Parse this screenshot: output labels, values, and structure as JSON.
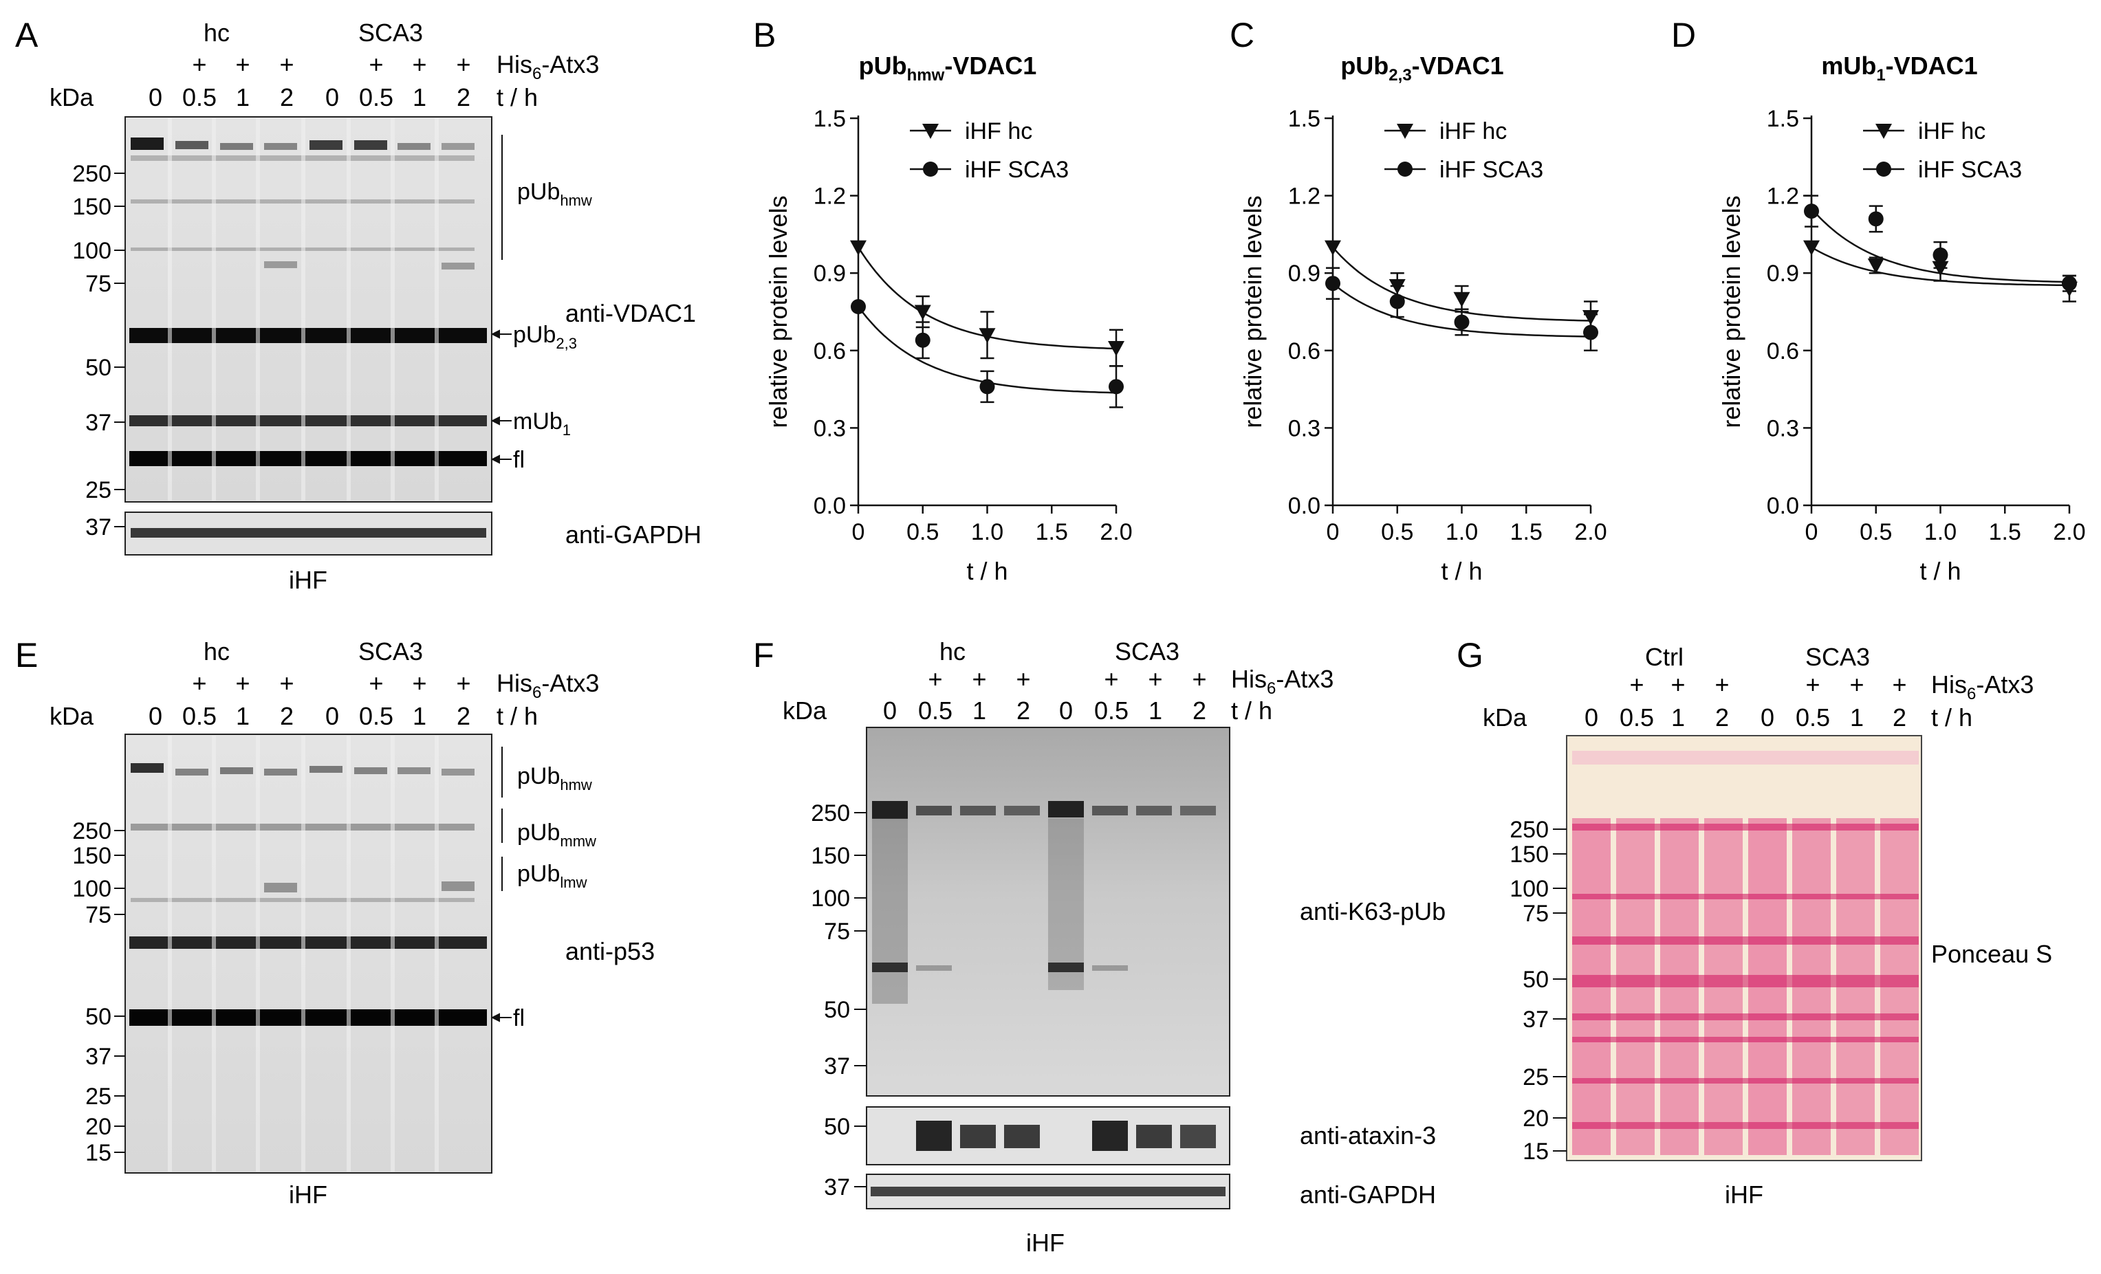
{
  "panel_letters": [
    "A",
    "B",
    "C",
    "D",
    "E",
    "F",
    "G"
  ],
  "common": {
    "kda": "kDa",
    "his": "His",
    "his_sub": "6",
    "his_rest": "-Atx3",
    "plus": "+",
    "th": "t / h",
    "ihf": "iHF",
    "time_labels": [
      "0",
      "0.5",
      "1",
      "2",
      "0",
      "0.5",
      "1",
      "2"
    ]
  },
  "panel_a": {
    "group_left": "hc",
    "group_right": "SCA3",
    "markers_main": [
      "250",
      "150",
      "100",
      "75",
      "50",
      "37",
      "25"
    ],
    "marker_gapdh": "37",
    "bracket_label": "pUb",
    "bracket_sub": "hmw",
    "antibody": "anti-VDAC1",
    "arrow_pub23": "pUb",
    "arrow_pub23_sub": "2,3",
    "arrow_mub1": "mUb",
    "arrow_mub1_sub": "1",
    "arrow_fl": "fl",
    "gapdh": "anti-GAPDH"
  },
  "panel_e": {
    "group_left": "hc",
    "group_right": "SCA3",
    "markers": [
      "250",
      "150",
      "100",
      "75",
      "50",
      "37",
      "25",
      "20",
      "15"
    ],
    "brackets": [
      {
        "label": "pUb",
        "sub": "hmw"
      },
      {
        "label": "pUb",
        "sub": "mmw"
      },
      {
        "label": "pUb",
        "sub": "lmw"
      }
    ],
    "antibody": "anti-p53",
    "arrow_fl": "fl"
  },
  "panel_f": {
    "group_left": "hc",
    "group_right": "SCA3",
    "markers": [
      "250",
      "150",
      "100",
      "75",
      "50",
      "37"
    ],
    "marker_ataxin": "50",
    "marker_gapdh": "37",
    "antibody": "anti-K63-pUb",
    "ataxin": "anti-ataxin-3",
    "gapdh": "anti-GAPDH"
  },
  "panel_g": {
    "group_left": "Ctrl",
    "group_right": "SCA3",
    "markers": [
      "250",
      "150",
      "100",
      "75",
      "50",
      "37",
      "25",
      "20",
      "15"
    ],
    "stain": "Ponceau S"
  },
  "chart_data": [
    {
      "type": "scatter",
      "title": "pUb",
      "title_sub": "hmw",
      "title_rest": "-VDAC1",
      "xlabel": "t / h",
      "ylabel": "relative protein levels",
      "xlim": [
        0,
        2.0
      ],
      "ylim": [
        0,
        1.5
      ],
      "xticks": [
        "0",
        "0.5",
        "1.0",
        "1.5",
        "2.0"
      ],
      "yticks": [
        "0.0",
        "0.3",
        "0.6",
        "0.9",
        "1.2",
        "1.5"
      ],
      "x": [
        0,
        0.5,
        1.0,
        2.0
      ],
      "series": [
        {
          "name": "iHF hc",
          "marker": "triangle-down",
          "values": [
            1.0,
            0.75,
            0.66,
            0.61
          ],
          "errors": [
            0.0,
            0.06,
            0.09,
            0.07
          ],
          "fit": [
            1.0,
            0.6
          ]
        },
        {
          "name": "iHF SCA3",
          "marker": "circle",
          "values": [
            0.77,
            0.64,
            0.46,
            0.46
          ],
          "errors": [
            0.0,
            0.07,
            0.06,
            0.08
          ],
          "fit": [
            0.77,
            0.43
          ]
        }
      ]
    },
    {
      "type": "scatter",
      "title": "pUb",
      "title_sub": "2,3",
      "title_rest": "-VDAC1",
      "xlabel": "t / h",
      "ylabel": "relative protein levels",
      "xlim": [
        0,
        2.0
      ],
      "ylim": [
        0,
        1.5
      ],
      "xticks": [
        "0",
        "0.5",
        "1.0",
        "1.5",
        "2.0"
      ],
      "yticks": [
        "0.0",
        "0.3",
        "0.6",
        "0.9",
        "1.2",
        "1.5"
      ],
      "x": [
        0,
        0.5,
        1.0,
        2.0
      ],
      "series": [
        {
          "name": "iHF hc",
          "marker": "triangle-down",
          "values": [
            1.0,
            0.85,
            0.8,
            0.73
          ],
          "errors": [
            0.0,
            0.05,
            0.05,
            0.06
          ],
          "fit": [
            1.0,
            0.71
          ]
        },
        {
          "name": "iHF SCA3",
          "marker": "circle",
          "values": [
            0.86,
            0.79,
            0.71,
            0.67
          ],
          "errors": [
            0.06,
            0.06,
            0.05,
            0.07
          ],
          "fit": [
            0.86,
            0.65
          ]
        }
      ]
    },
    {
      "type": "scatter",
      "title": "mUb",
      "title_sub": "1",
      "title_rest": "-VDAC1",
      "xlabel": "t / h",
      "ylabel": "relative protein levels",
      "xlim": [
        0,
        2.0
      ],
      "ylim": [
        0,
        1.5
      ],
      "xticks": [
        "0",
        "0.5",
        "1.0",
        "1.5",
        "2.0"
      ],
      "yticks": [
        "0.0",
        "0.3",
        "0.6",
        "0.9",
        "1.2",
        "1.5"
      ],
      "x": [
        0,
        0.5,
        1.0,
        2.0
      ],
      "series": [
        {
          "name": "iHF hc",
          "marker": "triangle-down",
          "values": [
            1.0,
            0.93,
            0.92,
            0.84
          ],
          "errors": [
            0.0,
            0.03,
            0.05,
            0.05
          ],
          "fit": [
            1.0,
            0.85
          ]
        },
        {
          "name": "iHF SCA3",
          "marker": "circle",
          "values": [
            1.14,
            1.11,
            0.97,
            0.86
          ],
          "errors": [
            0.06,
            0.05,
            0.05,
            0.03
          ],
          "fit": [
            1.15,
            0.86
          ]
        }
      ]
    }
  ]
}
